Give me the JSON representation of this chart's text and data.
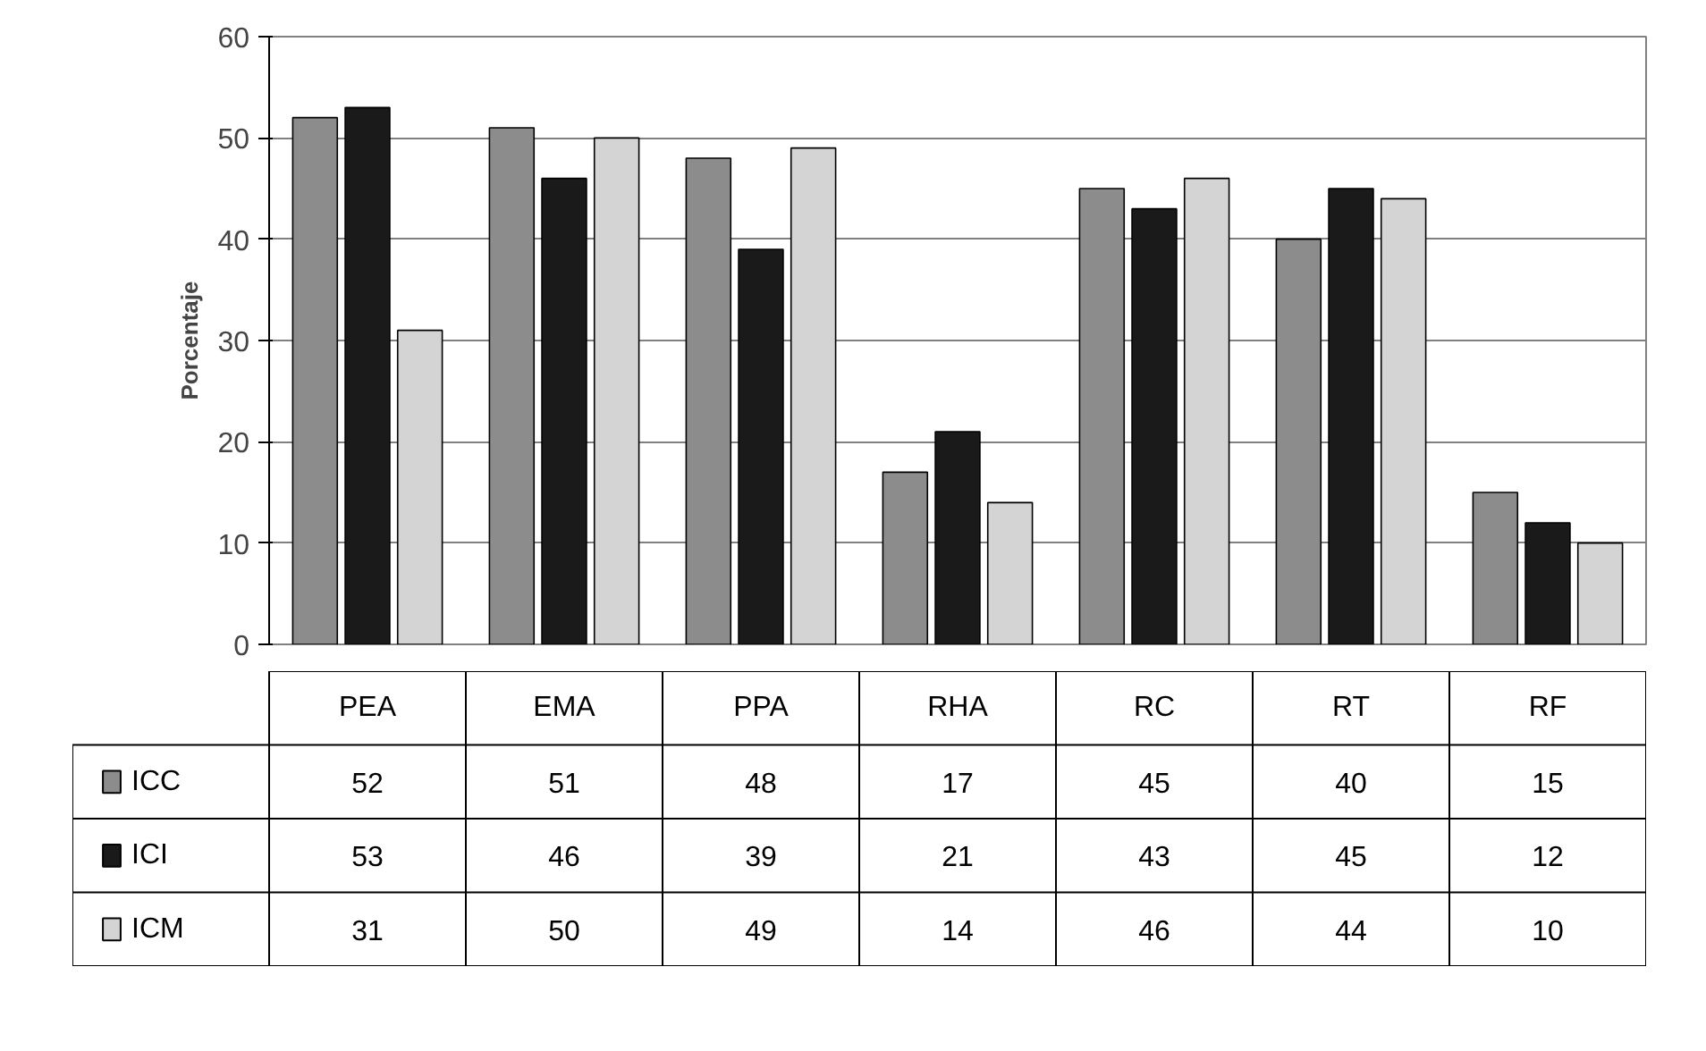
{
  "chart_data": {
    "type": "bar",
    "ylabel": "Porcentaje",
    "categories": [
      "PEA",
      "EMA",
      "PPA",
      "RHA",
      "RC",
      "RT",
      "RF"
    ],
    "series": [
      {
        "name": "ICC",
        "color": "#8c8c8c",
        "values": [
          52,
          51,
          48,
          17,
          45,
          40,
          15
        ]
      },
      {
        "name": "ICI",
        "color": "#1a1a1a",
        "values": [
          53,
          46,
          39,
          21,
          43,
          45,
          12
        ]
      },
      {
        "name": "ICM",
        "color": "#d4d4d4",
        "values": [
          31,
          50,
          49,
          14,
          46,
          44,
          10
        ]
      }
    ],
    "ylim": [
      0,
      60
    ],
    "yticks": [
      0,
      10,
      20,
      30,
      40,
      50,
      60
    ],
    "grid": "y",
    "legend": "bottom",
    "data_labels": true,
    "tick_labels": "y"
  }
}
